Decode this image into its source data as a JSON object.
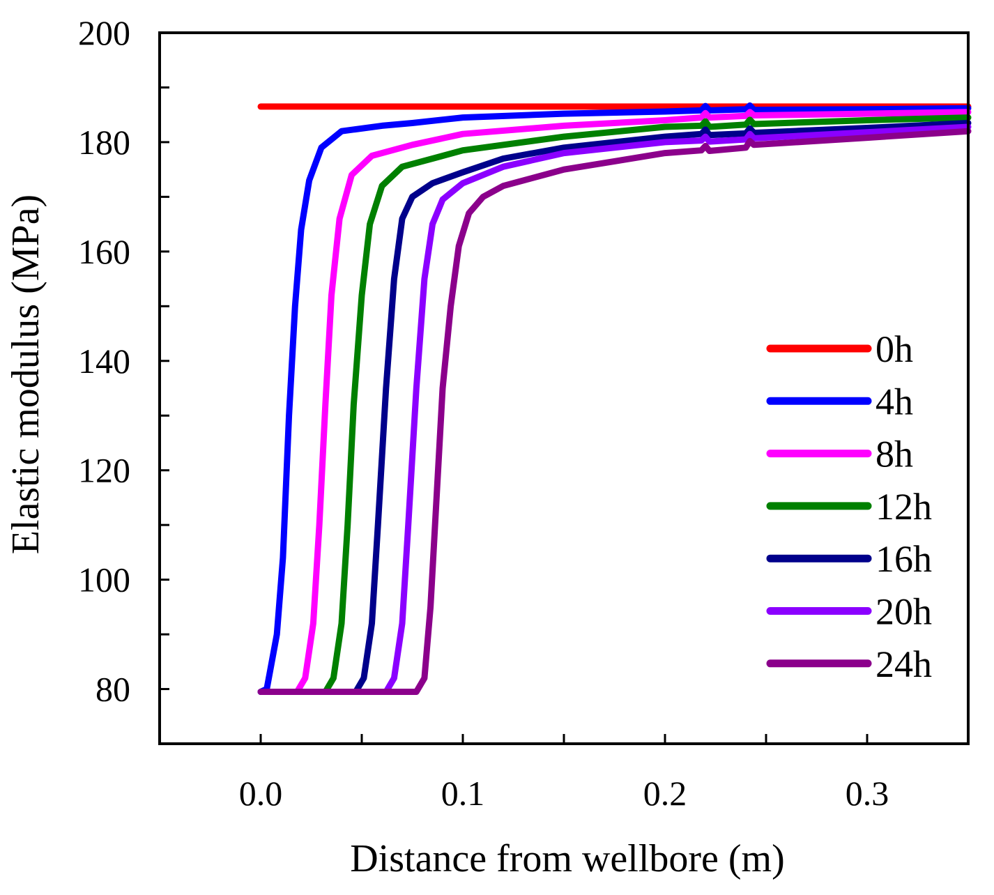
{
  "chart_data": {
    "type": "line",
    "xlabel": "Distance from wellbore (m)",
    "ylabel": "Elastic modulus (MPa)",
    "xlim": [
      -0.05,
      0.35
    ],
    "ylim": [
      70,
      200
    ],
    "x_ticks": [
      0.0,
      0.1,
      0.2,
      0.3
    ],
    "x_tick_labels": [
      "0.0",
      "0.1",
      "0.2",
      "0.3"
    ],
    "x_minor_ticks": [
      0.05,
      0.15,
      0.25
    ],
    "y_ticks": [
      80,
      100,
      120,
      140,
      160,
      180,
      200
    ],
    "y_tick_labels": [
      "80",
      "100",
      "120",
      "140",
      "160",
      "180",
      "200"
    ],
    "y_minor_ticks": [
      90,
      110,
      130,
      150,
      170,
      190
    ],
    "grid": false,
    "legend_position": "right",
    "series": [
      {
        "name": "0h",
        "color": "#ff0000",
        "x": [
          0.0,
          0.22,
          0.24,
          0.35
        ],
        "y": [
          186.5,
          186.5,
          186.5,
          186.5
        ]
      },
      {
        "name": "4h",
        "color": "#0000ff",
        "x": [
          0.0,
          0.003,
          0.008,
          0.011,
          0.014,
          0.017,
          0.02,
          0.024,
          0.03,
          0.04,
          0.06,
          0.075,
          0.1,
          0.15,
          0.2,
          0.218,
          0.22,
          0.222,
          0.24,
          0.242,
          0.244,
          0.3,
          0.35
        ],
        "y": [
          79.5,
          80,
          90,
          104,
          130,
          150,
          164,
          173,
          179,
          182,
          183,
          183.5,
          184.5,
          185.2,
          185.6,
          185.8,
          186.6,
          185.8,
          186,
          186.7,
          185.9,
          186,
          186.2
        ]
      },
      {
        "name": "8h",
        "color": "#ff00ff",
        "x": [
          0.0,
          0.018,
          0.022,
          0.026,
          0.029,
          0.032,
          0.035,
          0.039,
          0.045,
          0.055,
          0.075,
          0.1,
          0.15,
          0.2,
          0.218,
          0.22,
          0.222,
          0.24,
          0.242,
          0.244,
          0.3,
          0.35
        ],
        "y": [
          79.5,
          79.5,
          82,
          92,
          110,
          132,
          152,
          166,
          174,
          177.5,
          179.5,
          181.5,
          183,
          184,
          184.5,
          185.3,
          184.5,
          184.8,
          185.5,
          184.9,
          185.2,
          185.5
        ]
      },
      {
        "name": "12h",
        "color": "#008000",
        "x": [
          0.0,
          0.032,
          0.036,
          0.04,
          0.043,
          0.046,
          0.05,
          0.054,
          0.06,
          0.07,
          0.085,
          0.1,
          0.15,
          0.2,
          0.218,
          0.22,
          0.222,
          0.24,
          0.242,
          0.244,
          0.3,
          0.35
        ],
        "y": [
          79.5,
          79.5,
          82,
          92,
          110,
          132,
          152,
          165,
          172,
          175.5,
          177,
          178.5,
          181,
          182.8,
          183,
          183.8,
          182.8,
          183.2,
          184.1,
          183.3,
          184,
          184.5
        ]
      },
      {
        "name": "16h",
        "color": "#00008b",
        "x": [
          0.0,
          0.047,
          0.051,
          0.055,
          0.058,
          0.062,
          0.066,
          0.07,
          0.075,
          0.085,
          0.1,
          0.12,
          0.15,
          0.2,
          0.218,
          0.22,
          0.222,
          0.24,
          0.242,
          0.244,
          0.3,
          0.35
        ],
        "y": [
          79.5,
          79.5,
          82,
          92,
          110,
          135,
          155,
          166,
          170,
          172.5,
          174.5,
          177,
          179,
          181,
          181.5,
          182.3,
          181.3,
          181.6,
          182.5,
          181.7,
          182.6,
          183.5
        ]
      },
      {
        "name": "20h",
        "color": "#8b00ff",
        "x": [
          0.0,
          0.062,
          0.066,
          0.07,
          0.073,
          0.077,
          0.081,
          0.085,
          0.09,
          0.1,
          0.12,
          0.15,
          0.2,
          0.218,
          0.22,
          0.222,
          0.24,
          0.242,
          0.244,
          0.3,
          0.35
        ],
        "y": [
          79.5,
          79.5,
          82,
          92,
          110,
          135,
          155,
          165,
          169.5,
          172.5,
          175.5,
          178,
          180,
          180.3,
          181,
          180.1,
          180.5,
          181.5,
          180.7,
          181.8,
          182.8
        ]
      },
      {
        "name": "24h",
        "color": "#8b008b",
        "x": [
          0.0,
          0.077,
          0.081,
          0.084,
          0.087,
          0.09,
          0.094,
          0.098,
          0.103,
          0.11,
          0.12,
          0.15,
          0.2,
          0.218,
          0.22,
          0.222,
          0.24,
          0.242,
          0.244,
          0.3,
          0.35
        ],
        "y": [
          79.5,
          79.5,
          82,
          95,
          115,
          135,
          150,
          161,
          167,
          170,
          172,
          175,
          178,
          178.5,
          179.3,
          178.4,
          179,
          180.2,
          179.5,
          180.8,
          182
        ]
      }
    ]
  }
}
